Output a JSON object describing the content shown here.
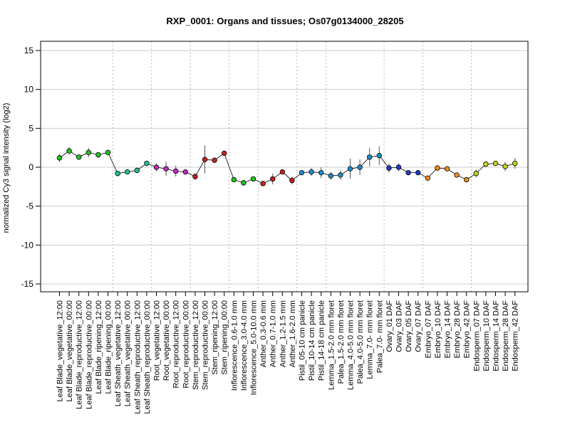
{
  "chart_data": {
    "type": "line",
    "title": "RXP_0001: Organs and tissues; Os07g0134000_28205",
    "xlabel": "",
    "ylabel": "normalized Cy3 signal intensity (log2)",
    "ylim": [
      -16,
      16
    ],
    "yticks": [
      -15,
      -10,
      -5,
      0,
      5,
      10,
      15
    ],
    "grid": true,
    "legend": "none",
    "categories": [
      "Leaf Blade_vegetative_12:00",
      "Leaf Blade_vegetative_00:00",
      "Leaf Blade_reproductive_12:00",
      "Leaf Blade_reproductive_00:00",
      "Leaf Blade_ripening_12:00",
      "Leaf Blade_ripening_00:00",
      "Leaf Sheath_vegetative_12:00",
      "Leaf Sheath_vegetative_00:00",
      "Leaf Sheath_reproductive_12:00",
      "Leaf Sheath_reproductive_00:00",
      "Root_vegetative_12:00",
      "Root_vegetative_00:00",
      "Root_reproductive_12:00",
      "Root_reproductive_00:00",
      "Stem_reproductive_12:00",
      "Stem_reproductive_00:00",
      "Stem_ripening_12:00",
      "Stem_ripening_00:00",
      "Inflorescence_0.6-1.0 mm",
      "Inflorescence_3.0-4.0 mm",
      "Inflorescence_5.0-10.0 mm",
      "Anther_0.3-0.6 mm",
      "Anther_0.7-1.0 mm",
      "Anther_1.2-1.5 mm",
      "Anther_1.6-2.0 mm",
      "Pistil_05-10 cm panicle",
      "Pistil_10-14 cm panicle",
      "Pistil_14-18 cm panicle",
      "Lemma_1.5-2.0 mm floret",
      "Palea_1.5-2.0 mm floret",
      "Lemma_4.0-5.0 mm floret",
      "Palea_4.0-5.0 mm floret",
      "Lemma_7.0- mm floret",
      "Palea_7.0- mm floret",
      "Ovary_01 DAF",
      "Ovary_03 DAF",
      "Ovary_05 DAF",
      "Ovary_07 DAF",
      "Embryo_07 DAF",
      "Embryo_10 DAF",
      "Embryo_14 DAF",
      "Embryo_28 DAF",
      "Embryo_42 DAF",
      "Endosperm_07 DAF",
      "Endosperm_10 DAF",
      "Endosperm_14 DAF",
      "Endosperm_28 DAF",
      "Endosperm_42 DAF"
    ],
    "values": [
      1.2,
      2.1,
      1.3,
      1.9,
      1.6,
      1.9,
      -0.8,
      -0.6,
      -0.4,
      0.5,
      0.0,
      -0.2,
      -0.5,
      -0.6,
      -1.2,
      1.0,
      0.9,
      1.8,
      -1.6,
      -2.0,
      -1.5,
      -2.1,
      -1.5,
      -0.6,
      -1.7,
      -0.7,
      -0.6,
      -0.7,
      -1.1,
      -1.0,
      -0.2,
      0.0,
      1.3,
      1.5,
      -0.1,
      0.0,
      -0.7,
      -0.7,
      -1.4,
      -0.1,
      -0.2,
      -1.0,
      -1.6,
      -0.8,
      0.4,
      0.5,
      0.1,
      0.5
    ],
    "errors": [
      0.5,
      0.5,
      0.2,
      0.6,
      0.3,
      0.2,
      0.2,
      0.3,
      0.2,
      0.2,
      0.5,
      0.9,
      0.7,
      0.3,
      0.4,
      1.8,
      0.2,
      0.2,
      0.2,
      0.2,
      0.2,
      0.1,
      0.7,
      0.2,
      0.5,
      0.3,
      0.5,
      0.7,
      0.5,
      0.6,
      1.3,
      1.0,
      1.2,
      1.2,
      0.6,
      0.5,
      0.2,
      0.3,
      0.2,
      0.3,
      0.2,
      0.3,
      0.2,
      0.5,
      0.3,
      0.2,
      0.6,
      0.7
    ],
    "group_breaks_after_index": [
      5,
      9,
      13,
      17,
      20,
      24,
      27,
      33,
      37,
      42
    ],
    "point_colors": [
      "#22c422",
      "#22c422",
      "#22c422",
      "#22c422",
      "#22c422",
      "#22c422",
      "#22c48a",
      "#22c48a",
      "#22c48a",
      "#22c48a",
      "#c428c4",
      "#c428c4",
      "#c428c4",
      "#c428c4",
      "#c42222",
      "#c42222",
      "#c42222",
      "#c42222",
      "#22c422",
      "#22c422",
      "#22c422",
      "#c42222",
      "#c42222",
      "#c42222",
      "#c42222",
      "#1e8ec8",
      "#1e8ec8",
      "#1e8ec8",
      "#1e8ec8",
      "#1e8ec8",
      "#1e8ec8",
      "#1e8ec8",
      "#1e8ec8",
      "#1e8ec8",
      "#1e3cc8",
      "#1e3cc8",
      "#1e3cc8",
      "#1e3cc8",
      "#f08c1e",
      "#f08c1e",
      "#f08c1e",
      "#f08c1e",
      "#f08c1e",
      "#c8d41e",
      "#c8d41e",
      "#c8d41e",
      "#c8d41e",
      "#c8d41e"
    ]
  }
}
